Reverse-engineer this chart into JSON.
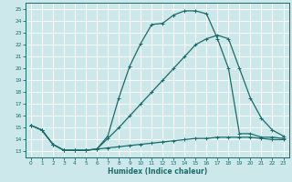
{
  "xlabel": "Humidex (Indice chaleur)",
  "bg_color": "#cce8ea",
  "line_color": "#1a6b6b",
  "grid_color": "#ffffff",
  "xlim": [
    -0.5,
    23.5
  ],
  "ylim": [
    12.5,
    25.5
  ],
  "xticks": [
    0,
    1,
    2,
    3,
    4,
    5,
    6,
    7,
    8,
    9,
    10,
    11,
    12,
    13,
    14,
    15,
    16,
    17,
    18,
    19,
    20,
    21,
    22,
    23
  ],
  "yticks": [
    13,
    14,
    15,
    16,
    17,
    18,
    19,
    20,
    21,
    22,
    23,
    24,
    25
  ],
  "line_main_x": [
    0,
    1,
    2,
    3,
    4,
    5,
    6,
    7,
    8,
    9,
    10,
    11,
    12,
    13,
    14,
    15,
    16,
    17,
    18,
    19,
    20,
    21,
    22,
    23
  ],
  "line_main_y": [
    15.2,
    14.8,
    13.6,
    13.1,
    13.1,
    13.1,
    13.2,
    14.3,
    17.5,
    20.2,
    22.1,
    23.7,
    23.8,
    24.5,
    24.85,
    24.85,
    24.6,
    22.5,
    20.0,
    14.5,
    14.5,
    14.2,
    14.2,
    14.1
  ],
  "line_mid_x": [
    0,
    1,
    2,
    3,
    4,
    5,
    6,
    7,
    8,
    9,
    10,
    11,
    12,
    13,
    14,
    15,
    16,
    17,
    18,
    19,
    20,
    21,
    22,
    23
  ],
  "line_mid_y": [
    15.2,
    14.8,
    13.6,
    13.1,
    13.1,
    13.1,
    13.2,
    14.1,
    15.0,
    16.0,
    17.0,
    18.0,
    19.0,
    20.0,
    21.0,
    22.0,
    22.5,
    22.8,
    22.5,
    20.0,
    17.5,
    15.8,
    14.8,
    14.3
  ],
  "line_low_x": [
    0,
    1,
    2,
    3,
    4,
    5,
    6,
    7,
    8,
    9,
    10,
    11,
    12,
    13,
    14,
    15,
    16,
    17,
    18,
    19,
    20,
    21,
    22,
    23
  ],
  "line_low_y": [
    15.2,
    14.8,
    13.6,
    13.1,
    13.1,
    13.1,
    13.2,
    13.3,
    13.4,
    13.5,
    13.6,
    13.7,
    13.8,
    13.9,
    14.0,
    14.1,
    14.1,
    14.2,
    14.2,
    14.2,
    14.2,
    14.1,
    14.0,
    14.0
  ]
}
